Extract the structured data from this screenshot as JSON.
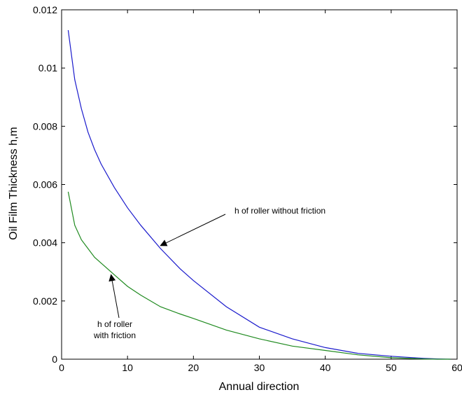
{
  "chart_data": {
    "type": "line",
    "xlabel": "Annual direction",
    "ylabel": "Oil Film Thickness h,m",
    "xlim": [
      0,
      60
    ],
    "ylim": [
      0,
      0.012
    ],
    "xticks": [
      0,
      10,
      20,
      30,
      40,
      50,
      60
    ],
    "xtick_labels": [
      "0",
      "10",
      "20",
      "30",
      "40",
      "50",
      "60"
    ],
    "yticks": [
      0,
      0.002,
      0.004,
      0.006,
      0.008,
      0.01,
      0.012
    ],
    "ytick_labels": [
      "0",
      "0.002",
      "0.004",
      "0.006",
      "0.008",
      "0.01",
      "0.012"
    ],
    "grid": false,
    "series": [
      {
        "color": "#1a1acc",
        "x": [
          1,
          2,
          3,
          4,
          5,
          6,
          8,
          10,
          12,
          15,
          18,
          20,
          25,
          30,
          35,
          40,
          45,
          50,
          55,
          57,
          59
        ],
        "values": [
          0.0113,
          0.0096,
          0.0086,
          0.0078,
          0.0072,
          0.0067,
          0.0059,
          0.0052,
          0.0046,
          0.0038,
          0.0031,
          0.0027,
          0.0018,
          0.0011,
          0.0007,
          0.0004,
          0.0002,
          0.0001,
          3e-05,
          1e-05,
          0.0
        ]
      },
      {
        "color": "#1f8a1f",
        "x": [
          1,
          2,
          3,
          4,
          5,
          6,
          8,
          10,
          12,
          15,
          18,
          20,
          25,
          30,
          35,
          40,
          45,
          50,
          55,
          57,
          59
        ],
        "values": [
          0.00575,
          0.0046,
          0.0041,
          0.0038,
          0.0035,
          0.0033,
          0.0029,
          0.0025,
          0.0022,
          0.0018,
          0.00155,
          0.0014,
          0.001,
          0.0007,
          0.00045,
          0.0003,
          0.00015,
          5e-05,
          1e-05,
          0.0,
          0.0
        ]
      }
    ],
    "annotations": [
      {
        "text": "h of roller without friction",
        "arrow_to": [
          15,
          0.0039
        ]
      },
      {
        "text": "h of roller\nwith friction",
        "arrow_to": [
          7.5,
          0.0029
        ]
      }
    ]
  }
}
